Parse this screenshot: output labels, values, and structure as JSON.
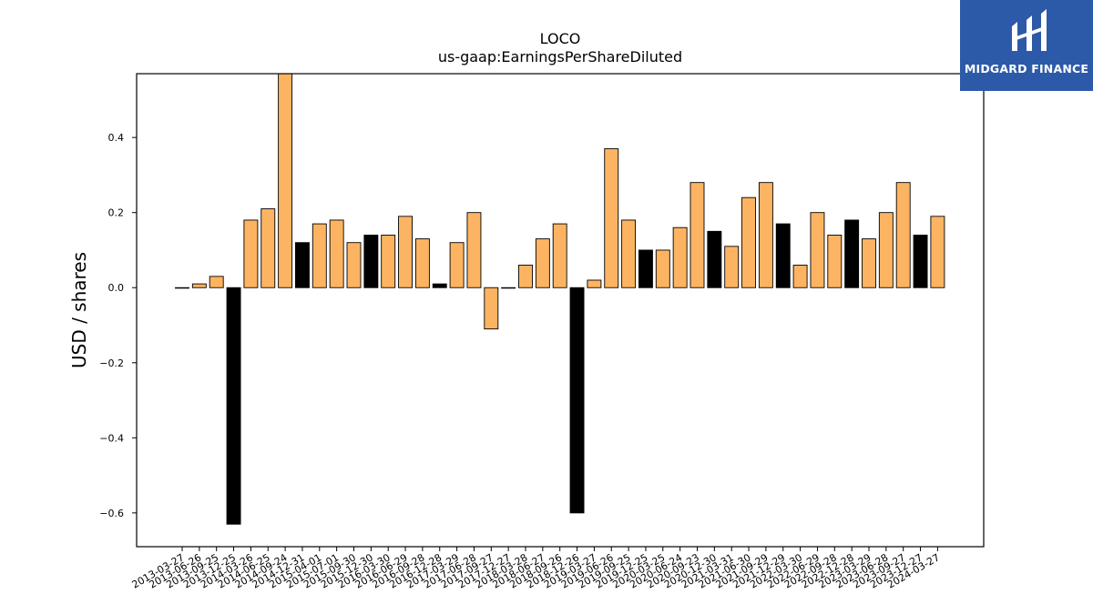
{
  "brand": {
    "name": "MIDGARD FINANCE",
    "logo_icon": "midgard-m-mark-icon",
    "color": "#2d5aa8"
  },
  "chart_data": {
    "type": "bar",
    "title": "LOCO",
    "subtitle": "us-gaap:EarningsPerShareDiluted",
    "xlabel": "",
    "ylabel": "USD / shares",
    "ylim": [
      -0.69,
      0.57
    ],
    "yticks": [
      -0.6,
      -0.4,
      -0.2,
      0.0,
      0.2,
      0.4
    ],
    "ytick_labels": [
      "−0.6",
      "−0.4",
      "−0.2",
      "0.0",
      "0.2",
      "0.4"
    ],
    "grid": false,
    "colors": {
      "quarterly": "#fdb462",
      "annual": "#000000"
    },
    "categories": [
      "2013-03-27",
      "2013-06-26",
      "2013-09-25",
      "2013-12-25",
      "2014-03-26",
      "2014-06-25",
      "2014-09-24",
      "2014-12-31",
      "2015-04-01",
      "2015-07-01",
      "2015-09-30",
      "2015-12-30",
      "2016-03-30",
      "2016-06-29",
      "2016-09-28",
      "2016-12-28",
      "2017-03-29",
      "2017-06-28",
      "2017-09-27",
      "2017-12-27",
      "2018-03-28",
      "2018-06-27",
      "2018-09-26",
      "2018-12-26",
      "2019-03-27",
      "2019-06-26",
      "2019-09-25",
      "2019-12-25",
      "2020-03-25",
      "2020-06-24",
      "2020-09-23",
      "2020-12-30",
      "2021-03-31",
      "2021-06-30",
      "2021-09-29",
      "2021-12-29",
      "2022-03-30",
      "2022-06-29",
      "2022-09-28",
      "2022-12-28",
      "2023-03-29",
      "2023-06-28",
      "2023-09-27",
      "2023-12-27",
      "2024-03-27"
    ],
    "values": [
      0.0,
      0.01,
      0.03,
      -0.63,
      0.18,
      0.21,
      0.57,
      0.12,
      0.17,
      0.18,
      0.12,
      0.14,
      0.14,
      0.19,
      0.13,
      0.01,
      0.12,
      0.2,
      -0.11,
      0.0,
      0.06,
      0.13,
      0.17,
      -0.6,
      0.02,
      0.37,
      0.18,
      0.1,
      0.1,
      0.16,
      0.28,
      0.15,
      0.11,
      0.24,
      0.28,
      0.17,
      0.06,
      0.2,
      0.14,
      0.18,
      0.13,
      0.2,
      0.28,
      0.14,
      0.19
    ],
    "bar_kind": [
      "q",
      "q",
      "q",
      "a",
      "q",
      "q",
      "q",
      "a",
      "q",
      "q",
      "q",
      "a",
      "q",
      "q",
      "q",
      "a",
      "q",
      "q",
      "q",
      "a",
      "q",
      "q",
      "q",
      "a",
      "q",
      "q",
      "q",
      "a",
      "q",
      "q",
      "q",
      "a",
      "q",
      "q",
      "q",
      "a",
      "q",
      "q",
      "q",
      "a",
      "q",
      "q",
      "q",
      "a",
      "q"
    ]
  }
}
